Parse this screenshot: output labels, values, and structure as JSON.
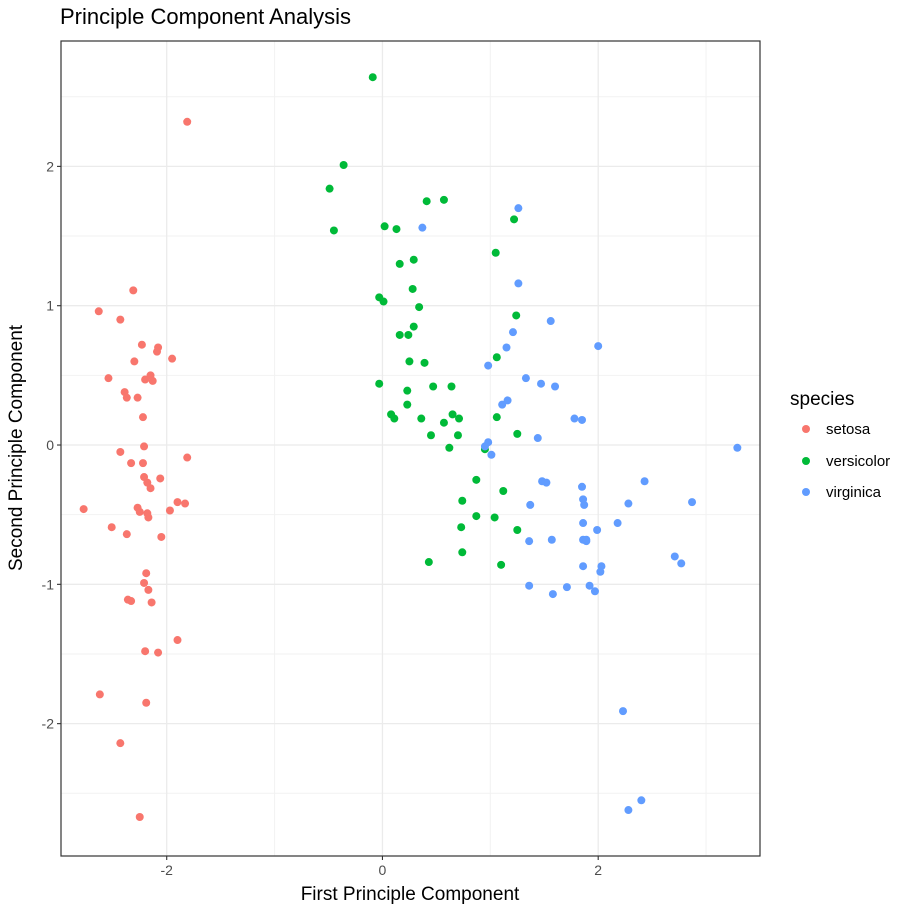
{
  "chart_data": {
    "type": "scatter",
    "title": "Principle Component Analysis",
    "xlabel": "First Principle Component",
    "ylabel": "Second Principle Component",
    "xlim": [
      -2.98,
      3.5
    ],
    "ylim": [
      -2.95,
      2.9
    ],
    "xticks": [
      -2,
      0,
      2
    ],
    "xtick_labels": [
      "-2",
      "0",
      "2"
    ],
    "yticks": [
      -2,
      -1,
      0,
      1,
      2
    ],
    "ytick_labels": [
      "-2",
      "-1",
      "0",
      "1",
      "2"
    ],
    "grid": true,
    "legend": {
      "title": "species",
      "position": "right"
    },
    "series": [
      {
        "name": "setosa",
        "color": "#f8766d",
        "points": [
          [
            -1.81,
            2.32
          ],
          [
            -2.31,
            1.11
          ],
          [
            -2.63,
            0.96
          ],
          [
            -2.43,
            0.9
          ],
          [
            -2.23,
            0.72
          ],
          [
            -2.08,
            0.7
          ],
          [
            -2.09,
            0.67
          ],
          [
            -1.95,
            0.62
          ],
          [
            -2.3,
            0.6
          ],
          [
            -2.54,
            0.48
          ],
          [
            -2.15,
            0.5
          ],
          [
            -2.2,
            0.47
          ],
          [
            -2.13,
            0.46
          ],
          [
            -2.39,
            0.38
          ],
          [
            -2.37,
            0.34
          ],
          [
            -2.27,
            0.34
          ],
          [
            -2.22,
            0.2
          ],
          [
            -2.33,
            -0.13
          ],
          [
            -2.22,
            -0.13
          ],
          [
            -2.43,
            -0.05
          ],
          [
            -2.21,
            -0.01
          ],
          [
            -1.81,
            -0.09
          ],
          [
            -2.21,
            -0.23
          ],
          [
            -2.06,
            -0.24
          ],
          [
            -2.18,
            -0.27
          ],
          [
            -2.15,
            -0.31
          ],
          [
            -1.9,
            -0.41
          ],
          [
            -1.83,
            -0.42
          ],
          [
            -2.27,
            -0.45
          ],
          [
            -2.25,
            -0.48
          ],
          [
            -1.97,
            -0.47
          ],
          [
            -2.77,
            -0.46
          ],
          [
            -2.18,
            -0.49
          ],
          [
            -2.17,
            -0.52
          ],
          [
            -2.51,
            -0.59
          ],
          [
            -2.37,
            -0.64
          ],
          [
            -2.05,
            -0.66
          ],
          [
            -2.19,
            -0.92
          ],
          [
            -2.21,
            -0.99
          ],
          [
            -2.17,
            -1.04
          ],
          [
            -2.36,
            -1.11
          ],
          [
            -2.33,
            -1.12
          ],
          [
            -2.14,
            -1.13
          ],
          [
            -1.9,
            -1.4
          ],
          [
            -2.2,
            -1.48
          ],
          [
            -2.08,
            -1.49
          ],
          [
            -2.62,
            -1.79
          ],
          [
            -2.19,
            -1.85
          ],
          [
            -2.43,
            -2.14
          ],
          [
            -2.25,
            -2.67
          ]
        ]
      },
      {
        "name": "versicolor",
        "color": "#00ba38",
        "points": [
          [
            -0.09,
            2.64
          ],
          [
            -0.36,
            2.01
          ],
          [
            -0.49,
            1.84
          ],
          [
            0.41,
            1.75
          ],
          [
            0.57,
            1.76
          ],
          [
            -0.45,
            1.54
          ],
          [
            0.02,
            1.57
          ],
          [
            0.13,
            1.55
          ],
          [
            1.22,
            1.62
          ],
          [
            1.05,
            1.38
          ],
          [
            0.29,
            1.33
          ],
          [
            0.16,
            1.3
          ],
          [
            0.28,
            1.12
          ],
          [
            -0.03,
            1.06
          ],
          [
            0.01,
            1.03
          ],
          [
            0.34,
            0.99
          ],
          [
            1.24,
            0.93
          ],
          [
            0.29,
            0.85
          ],
          [
            0.16,
            0.79
          ],
          [
            0.24,
            0.79
          ],
          [
            1.06,
            0.63
          ],
          [
            0.25,
            0.6
          ],
          [
            0.39,
            0.59
          ],
          [
            -0.03,
            0.44
          ],
          [
            0.47,
            0.42
          ],
          [
            0.64,
            0.42
          ],
          [
            0.23,
            0.39
          ],
          [
            0.23,
            0.29
          ],
          [
            0.08,
            0.22
          ],
          [
            0.65,
            0.22
          ],
          [
            0.11,
            0.19
          ],
          [
            0.36,
            0.19
          ],
          [
            0.71,
            0.19
          ],
          [
            1.06,
            0.2
          ],
          [
            0.57,
            0.16
          ],
          [
            0.45,
            0.07
          ],
          [
            0.7,
            0.07
          ],
          [
            1.25,
            0.08
          ],
          [
            0.62,
            -0.02
          ],
          [
            0.87,
            -0.25
          ],
          [
            1.12,
            -0.33
          ],
          [
            0.74,
            -0.4
          ],
          [
            0.87,
            -0.51
          ],
          [
            1.04,
            -0.52
          ],
          [
            0.73,
            -0.59
          ],
          [
            1.25,
            -0.61
          ],
          [
            0.74,
            -0.77
          ],
          [
            0.43,
            -0.84
          ],
          [
            1.1,
            -0.86
          ],
          [
            0.95,
            -0.03
          ]
        ]
      },
      {
        "name": "virginica",
        "color": "#619cff",
        "points": [
          [
            1.26,
            1.7
          ],
          [
            0.37,
            1.56
          ],
          [
            1.26,
            1.16
          ],
          [
            1.56,
            0.89
          ],
          [
            1.21,
            0.81
          ],
          [
            2.0,
            0.71
          ],
          [
            1.15,
            0.7
          ],
          [
            0.98,
            0.57
          ],
          [
            1.33,
            0.48
          ],
          [
            1.47,
            0.44
          ],
          [
            1.6,
            0.42
          ],
          [
            1.16,
            0.32
          ],
          [
            1.11,
            0.29
          ],
          [
            1.78,
            0.19
          ],
          [
            1.85,
            0.18
          ],
          [
            1.44,
            0.05
          ],
          [
            3.29,
            -0.02
          ],
          [
            0.98,
            0.02
          ],
          [
            0.95,
            -0.01
          ],
          [
            1.01,
            -0.07
          ],
          [
            1.48,
            -0.26
          ],
          [
            1.52,
            -0.27
          ],
          [
            1.85,
            -0.3
          ],
          [
            2.43,
            -0.26
          ],
          [
            1.86,
            -0.39
          ],
          [
            1.87,
            -0.43
          ],
          [
            2.28,
            -0.42
          ],
          [
            2.87,
            -0.41
          ],
          [
            1.37,
            -0.43
          ],
          [
            1.86,
            -0.56
          ],
          [
            2.18,
            -0.56
          ],
          [
            1.99,
            -0.61
          ],
          [
            1.36,
            -0.69
          ],
          [
            1.57,
            -0.68
          ],
          [
            1.86,
            -0.68
          ],
          [
            1.89,
            -0.69
          ],
          [
            2.71,
            -0.8
          ],
          [
            2.77,
            -0.85
          ],
          [
            2.03,
            -0.87
          ],
          [
            1.86,
            -0.87
          ],
          [
            2.02,
            -0.91
          ],
          [
            1.36,
            -1.01
          ],
          [
            1.71,
            -1.02
          ],
          [
            1.92,
            -1.01
          ],
          [
            1.97,
            -1.05
          ],
          [
            1.58,
            -1.07
          ],
          [
            2.23,
            -1.91
          ],
          [
            2.4,
            -2.55
          ],
          [
            2.28,
            -2.62
          ],
          [
            1.89,
            -0.68
          ]
        ]
      }
    ]
  }
}
